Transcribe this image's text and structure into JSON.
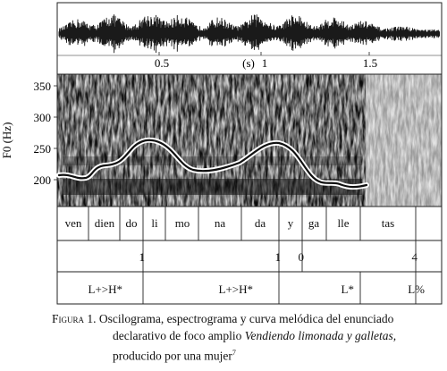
{
  "time_axis": {
    "ticks": [
      "0.5",
      "(s)",
      "1",
      "1.5"
    ]
  },
  "f0_axis": {
    "label": "F0 (Hz)",
    "ticks": [
      "350",
      "300",
      "250",
      "200"
    ]
  },
  "syllables": [
    "ven",
    "dien",
    "do",
    "li",
    "mo",
    "na",
    "da",
    "y",
    "ga",
    "lle",
    "tas"
  ],
  "break_indices": [
    "1",
    "1",
    "0",
    "4"
  ],
  "tones": [
    "L+>H*",
    "L+>H*",
    "L*",
    "L%"
  ],
  "caption": {
    "label": "Figura 1.",
    "text1": "Oscilograma, espectrograma y curva melódica del enunciado",
    "text2_a": "declarativo de foco amplio ",
    "text2_b": "Vendiendo limonada y galletas,",
    "text3": "producido por una mujer",
    "footnote": "7"
  },
  "colors": {
    "ink": "#111111",
    "spectrogram_bg": "#d8d8d8",
    "contour": "#ffffff"
  }
}
